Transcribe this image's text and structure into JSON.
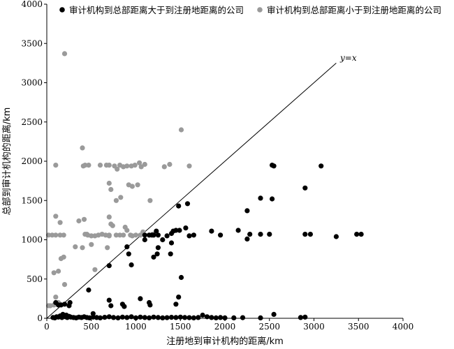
{
  "chart_data": {
    "type": "scatter",
    "xlabel": "注册地到审计机构的距离/km",
    "ylabel": "总部到审计机构的距离/km",
    "xlim": [
      0,
      4000
    ],
    "ylim": [
      0,
      4000
    ],
    "xticks": [
      0,
      500,
      1000,
      1500,
      2000,
      2500,
      3000,
      3500,
      4000
    ],
    "yticks": [
      0,
      500,
      1000,
      1500,
      2000,
      2500,
      3000,
      3500,
      4000
    ],
    "grid": false,
    "legend_position": "top",
    "reference_line": {
      "label": "y=x",
      "from": [
        0,
        0
      ],
      "to": [
        3250,
        3250
      ]
    },
    "series": [
      {
        "name": "审计机构到总部距离大于到注册地距离的公司",
        "color": "#000000",
        "points": [
          [
            70,
            10
          ],
          [
            90,
            5
          ],
          [
            110,
            20
          ],
          [
            130,
            15
          ],
          [
            150,
            30
          ],
          [
            170,
            10
          ],
          [
            190,
            40
          ],
          [
            210,
            20
          ],
          [
            230,
            10
          ],
          [
            250,
            25
          ],
          [
            270,
            15
          ],
          [
            300,
            10
          ],
          [
            330,
            5
          ],
          [
            360,
            15
          ],
          [
            390,
            10
          ],
          [
            420,
            20
          ],
          [
            450,
            10
          ],
          [
            480,
            5
          ],
          [
            520,
            15
          ],
          [
            560,
            10
          ],
          [
            600,
            5
          ],
          [
            650,
            12
          ],
          [
            700,
            20
          ],
          [
            750,
            10
          ],
          [
            800,
            5
          ],
          [
            850,
            15
          ],
          [
            900,
            10
          ],
          [
            950,
            20
          ],
          [
            1000,
            5
          ],
          [
            1050,
            15
          ],
          [
            1100,
            10
          ],
          [
            1150,
            5
          ],
          [
            1200,
            15
          ],
          [
            1250,
            10
          ],
          [
            1300,
            5
          ],
          [
            1350,
            8
          ],
          [
            1400,
            12
          ],
          [
            1450,
            10
          ],
          [
            1500,
            15
          ],
          [
            1550,
            10
          ],
          [
            1600,
            8
          ],
          [
            1650,
            5
          ],
          [
            1700,
            10
          ],
          [
            1750,
            40
          ],
          [
            1800,
            20
          ],
          [
            1850,
            10
          ],
          [
            1900,
            5
          ],
          [
            1950,
            10
          ],
          [
            2000,
            5
          ],
          [
            2100,
            5
          ],
          [
            2200,
            8
          ],
          [
            2400,
            5
          ],
          [
            2550,
            50
          ],
          [
            2850,
            10
          ],
          [
            2900,
            15
          ],
          [
            100,
            200
          ],
          [
            130,
            170
          ],
          [
            160,
            170
          ],
          [
            200,
            180
          ],
          [
            250,
            160
          ],
          [
            260,
            200
          ],
          [
            180,
            50
          ],
          [
            220,
            40
          ],
          [
            470,
            360
          ],
          [
            520,
            60
          ],
          [
            700,
            230
          ],
          [
            720,
            160
          ],
          [
            850,
            180
          ],
          [
            870,
            150
          ],
          [
            1050,
            250
          ],
          [
            1150,
            200
          ],
          [
            1160,
            170
          ],
          [
            1450,
            180
          ],
          [
            1480,
            270
          ],
          [
            1510,
            520
          ],
          [
            700,
            670
          ],
          [
            900,
            910
          ],
          [
            920,
            820
          ],
          [
            950,
            680
          ],
          [
            1200,
            780
          ],
          [
            1240,
            820
          ],
          [
            1250,
            900
          ],
          [
            1390,
            820
          ],
          [
            1400,
            960
          ],
          [
            1100,
            1000
          ],
          [
            1100,
            1060
          ],
          [
            1150,
            1060
          ],
          [
            1180,
            1060
          ],
          [
            1200,
            1060
          ],
          [
            1230,
            1110
          ],
          [
            1250,
            1060
          ],
          [
            1300,
            1000
          ],
          [
            1350,
            1050
          ],
          [
            1400,
            1080
          ],
          [
            1420,
            1110
          ],
          [
            1450,
            1120
          ],
          [
            1490,
            1120
          ],
          [
            1560,
            1150
          ],
          [
            1600,
            1050
          ],
          [
            1650,
            1060
          ],
          [
            1850,
            1110
          ],
          [
            1950,
            1060
          ],
          [
            2150,
            1120
          ],
          [
            2250,
            1010
          ],
          [
            2280,
            1070
          ],
          [
            2400,
            1070
          ],
          [
            2500,
            1070
          ],
          [
            1480,
            1430
          ],
          [
            1580,
            1460
          ],
          [
            2250,
            1370
          ],
          [
            2400,
            1530
          ],
          [
            2530,
            1520
          ],
          [
            2900,
            1660
          ],
          [
            2530,
            1950
          ],
          [
            2550,
            1940
          ],
          [
            3080,
            1940
          ],
          [
            2900,
            1070
          ],
          [
            2960,
            1070
          ],
          [
            3250,
            1040
          ],
          [
            3480,
            1070
          ],
          [
            3530,
            1070
          ]
        ]
      },
      {
        "name": "审计机构到总部距离小于到注册地距离的公司",
        "color": "#9a9a9a",
        "points": [
          [
            20,
            160
          ],
          [
            40,
            160
          ],
          [
            80,
            170
          ],
          [
            100,
            270
          ],
          [
            130,
            200
          ],
          [
            200,
            430
          ],
          [
            250,
            170
          ],
          [
            80,
            580
          ],
          [
            130,
            600
          ],
          [
            160,
            760
          ],
          [
            190,
            780
          ],
          [
            20,
            1060
          ],
          [
            60,
            1060
          ],
          [
            100,
            1060
          ],
          [
            150,
            1060
          ],
          [
            190,
            1060
          ],
          [
            100,
            1300
          ],
          [
            150,
            1220
          ],
          [
            360,
            1240
          ],
          [
            420,
            1260
          ],
          [
            320,
            910
          ],
          [
            400,
            900
          ],
          [
            430,
            1070
          ],
          [
            460,
            1060
          ],
          [
            500,
            1050
          ],
          [
            540,
            1050
          ],
          [
            580,
            1060
          ],
          [
            620,
            1070
          ],
          [
            660,
            1060
          ],
          [
            700,
            1050
          ],
          [
            720,
            1200
          ],
          [
            740,
            1180
          ],
          [
            780,
            1060
          ],
          [
            820,
            1060
          ],
          [
            860,
            1060
          ],
          [
            880,
            1160
          ],
          [
            900,
            1120
          ],
          [
            940,
            1060
          ],
          [
            960,
            1050
          ],
          [
            1000,
            1060
          ],
          [
            1050,
            1060
          ],
          [
            1080,
            1100
          ],
          [
            1150,
            1060
          ],
          [
            1200,
            1060
          ],
          [
            680,
            900
          ],
          [
            700,
            1290
          ],
          [
            700,
            1060
          ],
          [
            400,
            2170
          ],
          [
            410,
            1940
          ],
          [
            430,
            1950
          ],
          [
            470,
            1950
          ],
          [
            600,
            1950
          ],
          [
            670,
            1950
          ],
          [
            700,
            1950
          ],
          [
            760,
            1940
          ],
          [
            790,
            1900
          ],
          [
            820,
            1950
          ],
          [
            860,
            1930
          ],
          [
            900,
            1940
          ],
          [
            950,
            1940
          ],
          [
            990,
            1950
          ],
          [
            1040,
            1980
          ],
          [
            1060,
            1930
          ],
          [
            1100,
            1960
          ],
          [
            1320,
            1930
          ],
          [
            1380,
            1960
          ],
          [
            1600,
            1940
          ],
          [
            700,
            1720
          ],
          [
            720,
            1640
          ],
          [
            780,
            1500
          ],
          [
            830,
            1540
          ],
          [
            920,
            1700
          ],
          [
            960,
            1680
          ],
          [
            1020,
            1700
          ],
          [
            1160,
            1500
          ],
          [
            100,
            1950
          ],
          [
            540,
            620
          ],
          [
            200,
            3370
          ],
          [
            1510,
            2400
          ],
          [
            1190,
            1070
          ],
          [
            450,
            1070
          ],
          [
            500,
            940
          ]
        ]
      }
    ]
  }
}
